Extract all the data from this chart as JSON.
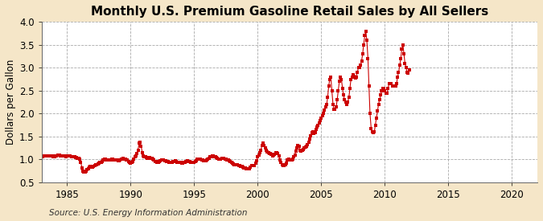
{
  "title": "Monthly U.S. Premium Gasoline Retail Sales by All Sellers",
  "ylabel": "Dollars per Gallon",
  "source": "Source: U.S. Energy Information Administration",
  "xlim": [
    1983.0,
    2022.0
  ],
  "ylim": [
    0.5,
    4.0
  ],
  "yticks": [
    0.5,
    1.0,
    1.5,
    2.0,
    2.5,
    3.0,
    3.5,
    4.0
  ],
  "xticks": [
    1985,
    1990,
    1995,
    2000,
    2005,
    2010,
    2015,
    2020
  ],
  "outer_bg": "#F5E6C8",
  "plot_bg": "#FFFFFF",
  "line_color": "#CC0000",
  "title_fontsize": 11,
  "axis_fontsize": 8.5,
  "source_fontsize": 7.5,
  "data": [
    [
      1983.08,
      1.06
    ],
    [
      1983.17,
      1.07
    ],
    [
      1983.25,
      1.07
    ],
    [
      1983.33,
      1.08
    ],
    [
      1983.42,
      1.07
    ],
    [
      1983.5,
      1.07
    ],
    [
      1983.58,
      1.08
    ],
    [
      1983.67,
      1.07
    ],
    [
      1983.75,
      1.07
    ],
    [
      1983.83,
      1.07
    ],
    [
      1983.92,
      1.06
    ],
    [
      1984.0,
      1.06
    ],
    [
      1984.08,
      1.07
    ],
    [
      1984.17,
      1.08
    ],
    [
      1984.25,
      1.09
    ],
    [
      1984.33,
      1.1
    ],
    [
      1984.42,
      1.09
    ],
    [
      1984.5,
      1.08
    ],
    [
      1984.58,
      1.08
    ],
    [
      1984.67,
      1.07
    ],
    [
      1984.75,
      1.07
    ],
    [
      1984.83,
      1.07
    ],
    [
      1984.92,
      1.06
    ],
    [
      1985.0,
      1.07
    ],
    [
      1985.08,
      1.07
    ],
    [
      1985.17,
      1.07
    ],
    [
      1985.25,
      1.07
    ],
    [
      1985.33,
      1.06
    ],
    [
      1985.42,
      1.06
    ],
    [
      1985.5,
      1.06
    ],
    [
      1985.58,
      1.05
    ],
    [
      1985.67,
      1.04
    ],
    [
      1985.75,
      1.04
    ],
    [
      1985.83,
      1.03
    ],
    [
      1985.92,
      1.02
    ],
    [
      1986.0,
      1.0
    ],
    [
      1986.08,
      0.93
    ],
    [
      1986.17,
      0.82
    ],
    [
      1986.25,
      0.74
    ],
    [
      1986.33,
      0.73
    ],
    [
      1986.42,
      0.73
    ],
    [
      1986.5,
      0.75
    ],
    [
      1986.58,
      0.78
    ],
    [
      1986.67,
      0.8
    ],
    [
      1986.75,
      0.83
    ],
    [
      1986.83,
      0.84
    ],
    [
      1986.92,
      0.83
    ],
    [
      1987.0,
      0.83
    ],
    [
      1987.08,
      0.85
    ],
    [
      1987.17,
      0.87
    ],
    [
      1987.25,
      0.88
    ],
    [
      1987.33,
      0.89
    ],
    [
      1987.42,
      0.9
    ],
    [
      1987.5,
      0.92
    ],
    [
      1987.58,
      0.93
    ],
    [
      1987.67,
      0.94
    ],
    [
      1987.75,
      0.96
    ],
    [
      1987.83,
      0.98
    ],
    [
      1987.92,
      1.0
    ],
    [
      1988.0,
      1.0
    ],
    [
      1988.08,
      0.99
    ],
    [
      1988.17,
      0.99
    ],
    [
      1988.25,
      0.99
    ],
    [
      1988.33,
      0.99
    ],
    [
      1988.42,
      0.99
    ],
    [
      1988.5,
      1.0
    ],
    [
      1988.58,
      1.0
    ],
    [
      1988.67,
      0.99
    ],
    [
      1988.75,
      0.99
    ],
    [
      1988.83,
      0.99
    ],
    [
      1988.92,
      0.98
    ],
    [
      1989.0,
      0.97
    ],
    [
      1989.08,
      0.97
    ],
    [
      1989.17,
      0.98
    ],
    [
      1989.25,
      1.0
    ],
    [
      1989.33,
      1.01
    ],
    [
      1989.42,
      1.02
    ],
    [
      1989.5,
      1.01
    ],
    [
      1989.58,
      1.0
    ],
    [
      1989.67,
      0.99
    ],
    [
      1989.75,
      0.98
    ],
    [
      1989.83,
      0.95
    ],
    [
      1989.92,
      0.93
    ],
    [
      1990.0,
      0.92
    ],
    [
      1990.08,
      0.93
    ],
    [
      1990.17,
      0.96
    ],
    [
      1990.25,
      1.0
    ],
    [
      1990.33,
      1.05
    ],
    [
      1990.42,
      1.08
    ],
    [
      1990.5,
      1.12
    ],
    [
      1990.58,
      1.2
    ],
    [
      1990.67,
      1.35
    ],
    [
      1990.75,
      1.38
    ],
    [
      1990.83,
      1.28
    ],
    [
      1990.92,
      1.15
    ],
    [
      1991.0,
      1.07
    ],
    [
      1991.08,
      1.05
    ],
    [
      1991.17,
      1.05
    ],
    [
      1991.25,
      1.04
    ],
    [
      1991.33,
      1.03
    ],
    [
      1991.42,
      1.03
    ],
    [
      1991.5,
      1.04
    ],
    [
      1991.58,
      1.03
    ],
    [
      1991.67,
      1.02
    ],
    [
      1991.75,
      1.0
    ],
    [
      1991.83,
      0.98
    ],
    [
      1991.92,
      0.96
    ],
    [
      1992.0,
      0.95
    ],
    [
      1992.08,
      0.94
    ],
    [
      1992.17,
      0.94
    ],
    [
      1992.25,
      0.96
    ],
    [
      1992.33,
      0.97
    ],
    [
      1992.42,
      0.98
    ],
    [
      1992.5,
      0.99
    ],
    [
      1992.58,
      0.99
    ],
    [
      1992.67,
      0.97
    ],
    [
      1992.75,
      0.97
    ],
    [
      1992.83,
      0.96
    ],
    [
      1992.92,
      0.95
    ],
    [
      1993.0,
      0.94
    ],
    [
      1993.08,
      0.93
    ],
    [
      1993.17,
      0.93
    ],
    [
      1993.25,
      0.94
    ],
    [
      1993.33,
      0.95
    ],
    [
      1993.42,
      0.96
    ],
    [
      1993.5,
      0.97
    ],
    [
      1993.58,
      0.96
    ],
    [
      1993.67,
      0.94
    ],
    [
      1993.75,
      0.94
    ],
    [
      1993.83,
      0.93
    ],
    [
      1993.92,
      0.93
    ],
    [
      1994.0,
      0.92
    ],
    [
      1994.08,
      0.92
    ],
    [
      1994.17,
      0.93
    ],
    [
      1994.25,
      0.94
    ],
    [
      1994.33,
      0.95
    ],
    [
      1994.42,
      0.96
    ],
    [
      1994.5,
      0.97
    ],
    [
      1994.58,
      0.96
    ],
    [
      1994.67,
      0.95
    ],
    [
      1994.75,
      0.94
    ],
    [
      1994.83,
      0.93
    ],
    [
      1994.92,
      0.93
    ],
    [
      1995.0,
      0.93
    ],
    [
      1995.08,
      0.95
    ],
    [
      1995.17,
      0.97
    ],
    [
      1995.25,
      1.0
    ],
    [
      1995.33,
      1.01
    ],
    [
      1995.42,
      1.01
    ],
    [
      1995.5,
      1.0
    ],
    [
      1995.58,
      0.99
    ],
    [
      1995.67,
      0.98
    ],
    [
      1995.75,
      0.97
    ],
    [
      1995.83,
      0.97
    ],
    [
      1995.92,
      0.97
    ],
    [
      1996.0,
      0.98
    ],
    [
      1996.08,
      1.0
    ],
    [
      1996.17,
      1.02
    ],
    [
      1996.25,
      1.05
    ],
    [
      1996.33,
      1.06
    ],
    [
      1996.42,
      1.07
    ],
    [
      1996.5,
      1.07
    ],
    [
      1996.58,
      1.06
    ],
    [
      1996.67,
      1.05
    ],
    [
      1996.75,
      1.04
    ],
    [
      1996.83,
      1.03
    ],
    [
      1996.92,
      1.01
    ],
    [
      1997.0,
      1.0
    ],
    [
      1997.08,
      1.01
    ],
    [
      1997.17,
      1.02
    ],
    [
      1997.25,
      1.03
    ],
    [
      1997.33,
      1.02
    ],
    [
      1997.42,
      1.01
    ],
    [
      1997.5,
      1.0
    ],
    [
      1997.58,
      0.99
    ],
    [
      1997.67,
      0.98
    ],
    [
      1997.75,
      0.97
    ],
    [
      1997.83,
      0.95
    ],
    [
      1997.92,
      0.93
    ],
    [
      1998.0,
      0.91
    ],
    [
      1998.08,
      0.9
    ],
    [
      1998.17,
      0.89
    ],
    [
      1998.25,
      0.89
    ],
    [
      1998.33,
      0.89
    ],
    [
      1998.42,
      0.88
    ],
    [
      1998.5,
      0.87
    ],
    [
      1998.58,
      0.86
    ],
    [
      1998.67,
      0.85
    ],
    [
      1998.75,
      0.84
    ],
    [
      1998.83,
      0.83
    ],
    [
      1998.92,
      0.82
    ],
    [
      1999.0,
      0.81
    ],
    [
      1999.08,
      0.8
    ],
    [
      1999.17,
      0.79
    ],
    [
      1999.25,
      0.79
    ],
    [
      1999.33,
      0.8
    ],
    [
      1999.42,
      0.83
    ],
    [
      1999.5,
      0.86
    ],
    [
      1999.58,
      0.87
    ],
    [
      1999.67,
      0.86
    ],
    [
      1999.75,
      0.87
    ],
    [
      1999.83,
      0.91
    ],
    [
      1999.92,
      0.97
    ],
    [
      2000.0,
      1.05
    ],
    [
      2000.08,
      1.1
    ],
    [
      2000.17,
      1.15
    ],
    [
      2000.25,
      1.2
    ],
    [
      2000.33,
      1.3
    ],
    [
      2000.42,
      1.35
    ],
    [
      2000.5,
      1.3
    ],
    [
      2000.58,
      1.25
    ],
    [
      2000.67,
      1.2
    ],
    [
      2000.75,
      1.16
    ],
    [
      2000.83,
      1.15
    ],
    [
      2000.92,
      1.13
    ],
    [
      2001.0,
      1.13
    ],
    [
      2001.08,
      1.11
    ],
    [
      2001.17,
      1.08
    ],
    [
      2001.25,
      1.1
    ],
    [
      2001.33,
      1.11
    ],
    [
      2001.42,
      1.15
    ],
    [
      2001.5,
      1.14
    ],
    [
      2001.58,
      1.12
    ],
    [
      2001.67,
      1.07
    ],
    [
      2001.75,
      0.99
    ],
    [
      2001.83,
      0.93
    ],
    [
      2001.92,
      0.89
    ],
    [
      2002.0,
      0.87
    ],
    [
      2002.08,
      0.86
    ],
    [
      2002.17,
      0.88
    ],
    [
      2002.25,
      0.92
    ],
    [
      2002.33,
      0.98
    ],
    [
      2002.42,
      1.0
    ],
    [
      2002.5,
      0.99
    ],
    [
      2002.58,
      0.99
    ],
    [
      2002.67,
      0.99
    ],
    [
      2002.75,
      1.01
    ],
    [
      2002.83,
      1.05
    ],
    [
      2002.92,
      1.1
    ],
    [
      2003.0,
      1.18
    ],
    [
      2003.08,
      1.25
    ],
    [
      2003.17,
      1.3
    ],
    [
      2003.25,
      1.28
    ],
    [
      2003.33,
      1.2
    ],
    [
      2003.42,
      1.18
    ],
    [
      2003.5,
      1.2
    ],
    [
      2003.58,
      1.22
    ],
    [
      2003.67,
      1.25
    ],
    [
      2003.75,
      1.27
    ],
    [
      2003.83,
      1.28
    ],
    [
      2003.92,
      1.32
    ],
    [
      2004.0,
      1.38
    ],
    [
      2004.08,
      1.45
    ],
    [
      2004.17,
      1.52
    ],
    [
      2004.25,
      1.58
    ],
    [
      2004.33,
      1.6
    ],
    [
      2004.42,
      1.56
    ],
    [
      2004.5,
      1.58
    ],
    [
      2004.58,
      1.65
    ],
    [
      2004.67,
      1.7
    ],
    [
      2004.75,
      1.75
    ],
    [
      2004.83,
      1.8
    ],
    [
      2004.92,
      1.85
    ],
    [
      2005.0,
      1.9
    ],
    [
      2005.08,
      1.95
    ],
    [
      2005.17,
      2.0
    ],
    [
      2005.25,
      2.08
    ],
    [
      2005.33,
      2.15
    ],
    [
      2005.42,
      2.2
    ],
    [
      2005.5,
      2.35
    ],
    [
      2005.58,
      2.6
    ],
    [
      2005.67,
      2.75
    ],
    [
      2005.75,
      2.8
    ],
    [
      2005.83,
      2.5
    ],
    [
      2005.92,
      2.2
    ],
    [
      2006.0,
      2.1
    ],
    [
      2006.08,
      2.1
    ],
    [
      2006.17,
      2.15
    ],
    [
      2006.25,
      2.3
    ],
    [
      2006.33,
      2.5
    ],
    [
      2006.42,
      2.7
    ],
    [
      2006.5,
      2.8
    ],
    [
      2006.58,
      2.75
    ],
    [
      2006.67,
      2.55
    ],
    [
      2006.75,
      2.4
    ],
    [
      2006.83,
      2.3
    ],
    [
      2006.92,
      2.25
    ],
    [
      2007.0,
      2.2
    ],
    [
      2007.08,
      2.25
    ],
    [
      2007.17,
      2.35
    ],
    [
      2007.25,
      2.55
    ],
    [
      2007.33,
      2.75
    ],
    [
      2007.42,
      2.8
    ],
    [
      2007.5,
      2.85
    ],
    [
      2007.58,
      2.82
    ],
    [
      2007.67,
      2.78
    ],
    [
      2007.75,
      2.8
    ],
    [
      2007.83,
      2.9
    ],
    [
      2007.92,
      3.0
    ],
    [
      2008.0,
      3.0
    ],
    [
      2008.08,
      3.05
    ],
    [
      2008.17,
      3.15
    ],
    [
      2008.25,
      3.3
    ],
    [
      2008.33,
      3.5
    ],
    [
      2008.42,
      3.7
    ],
    [
      2008.5,
      3.8
    ],
    [
      2008.58,
      3.6
    ],
    [
      2008.67,
      3.2
    ],
    [
      2008.75,
      2.6
    ],
    [
      2008.83,
      2.0
    ],
    [
      2008.92,
      1.68
    ],
    [
      2009.0,
      1.6
    ],
    [
      2009.08,
      1.58
    ],
    [
      2009.17,
      1.6
    ],
    [
      2009.25,
      1.75
    ],
    [
      2009.33,
      1.9
    ],
    [
      2009.42,
      2.05
    ],
    [
      2009.5,
      2.2
    ],
    [
      2009.58,
      2.3
    ],
    [
      2009.67,
      2.4
    ],
    [
      2009.75,
      2.5
    ],
    [
      2009.83,
      2.55
    ],
    [
      2009.92,
      2.55
    ],
    [
      2010.0,
      2.5
    ],
    [
      2010.08,
      2.45
    ],
    [
      2010.17,
      2.45
    ],
    [
      2010.25,
      2.55
    ],
    [
      2010.33,
      2.65
    ],
    [
      2010.42,
      2.65
    ],
    [
      2010.5,
      2.65
    ],
    [
      2010.58,
      2.6
    ],
    [
      2010.67,
      2.6
    ],
    [
      2010.75,
      2.6
    ],
    [
      2010.83,
      2.6
    ],
    [
      2010.92,
      2.65
    ],
    [
      2011.0,
      2.8
    ],
    [
      2011.08,
      2.9
    ],
    [
      2011.17,
      3.05
    ],
    [
      2011.25,
      3.2
    ],
    [
      2011.33,
      3.4
    ],
    [
      2011.42,
      3.5
    ],
    [
      2011.5,
      3.3
    ],
    [
      2011.58,
      3.1
    ],
    [
      2011.67,
      3.0
    ],
    [
      2011.75,
      2.9
    ],
    [
      2011.83,
      2.88
    ],
    [
      2011.92,
      2.95
    ]
  ]
}
